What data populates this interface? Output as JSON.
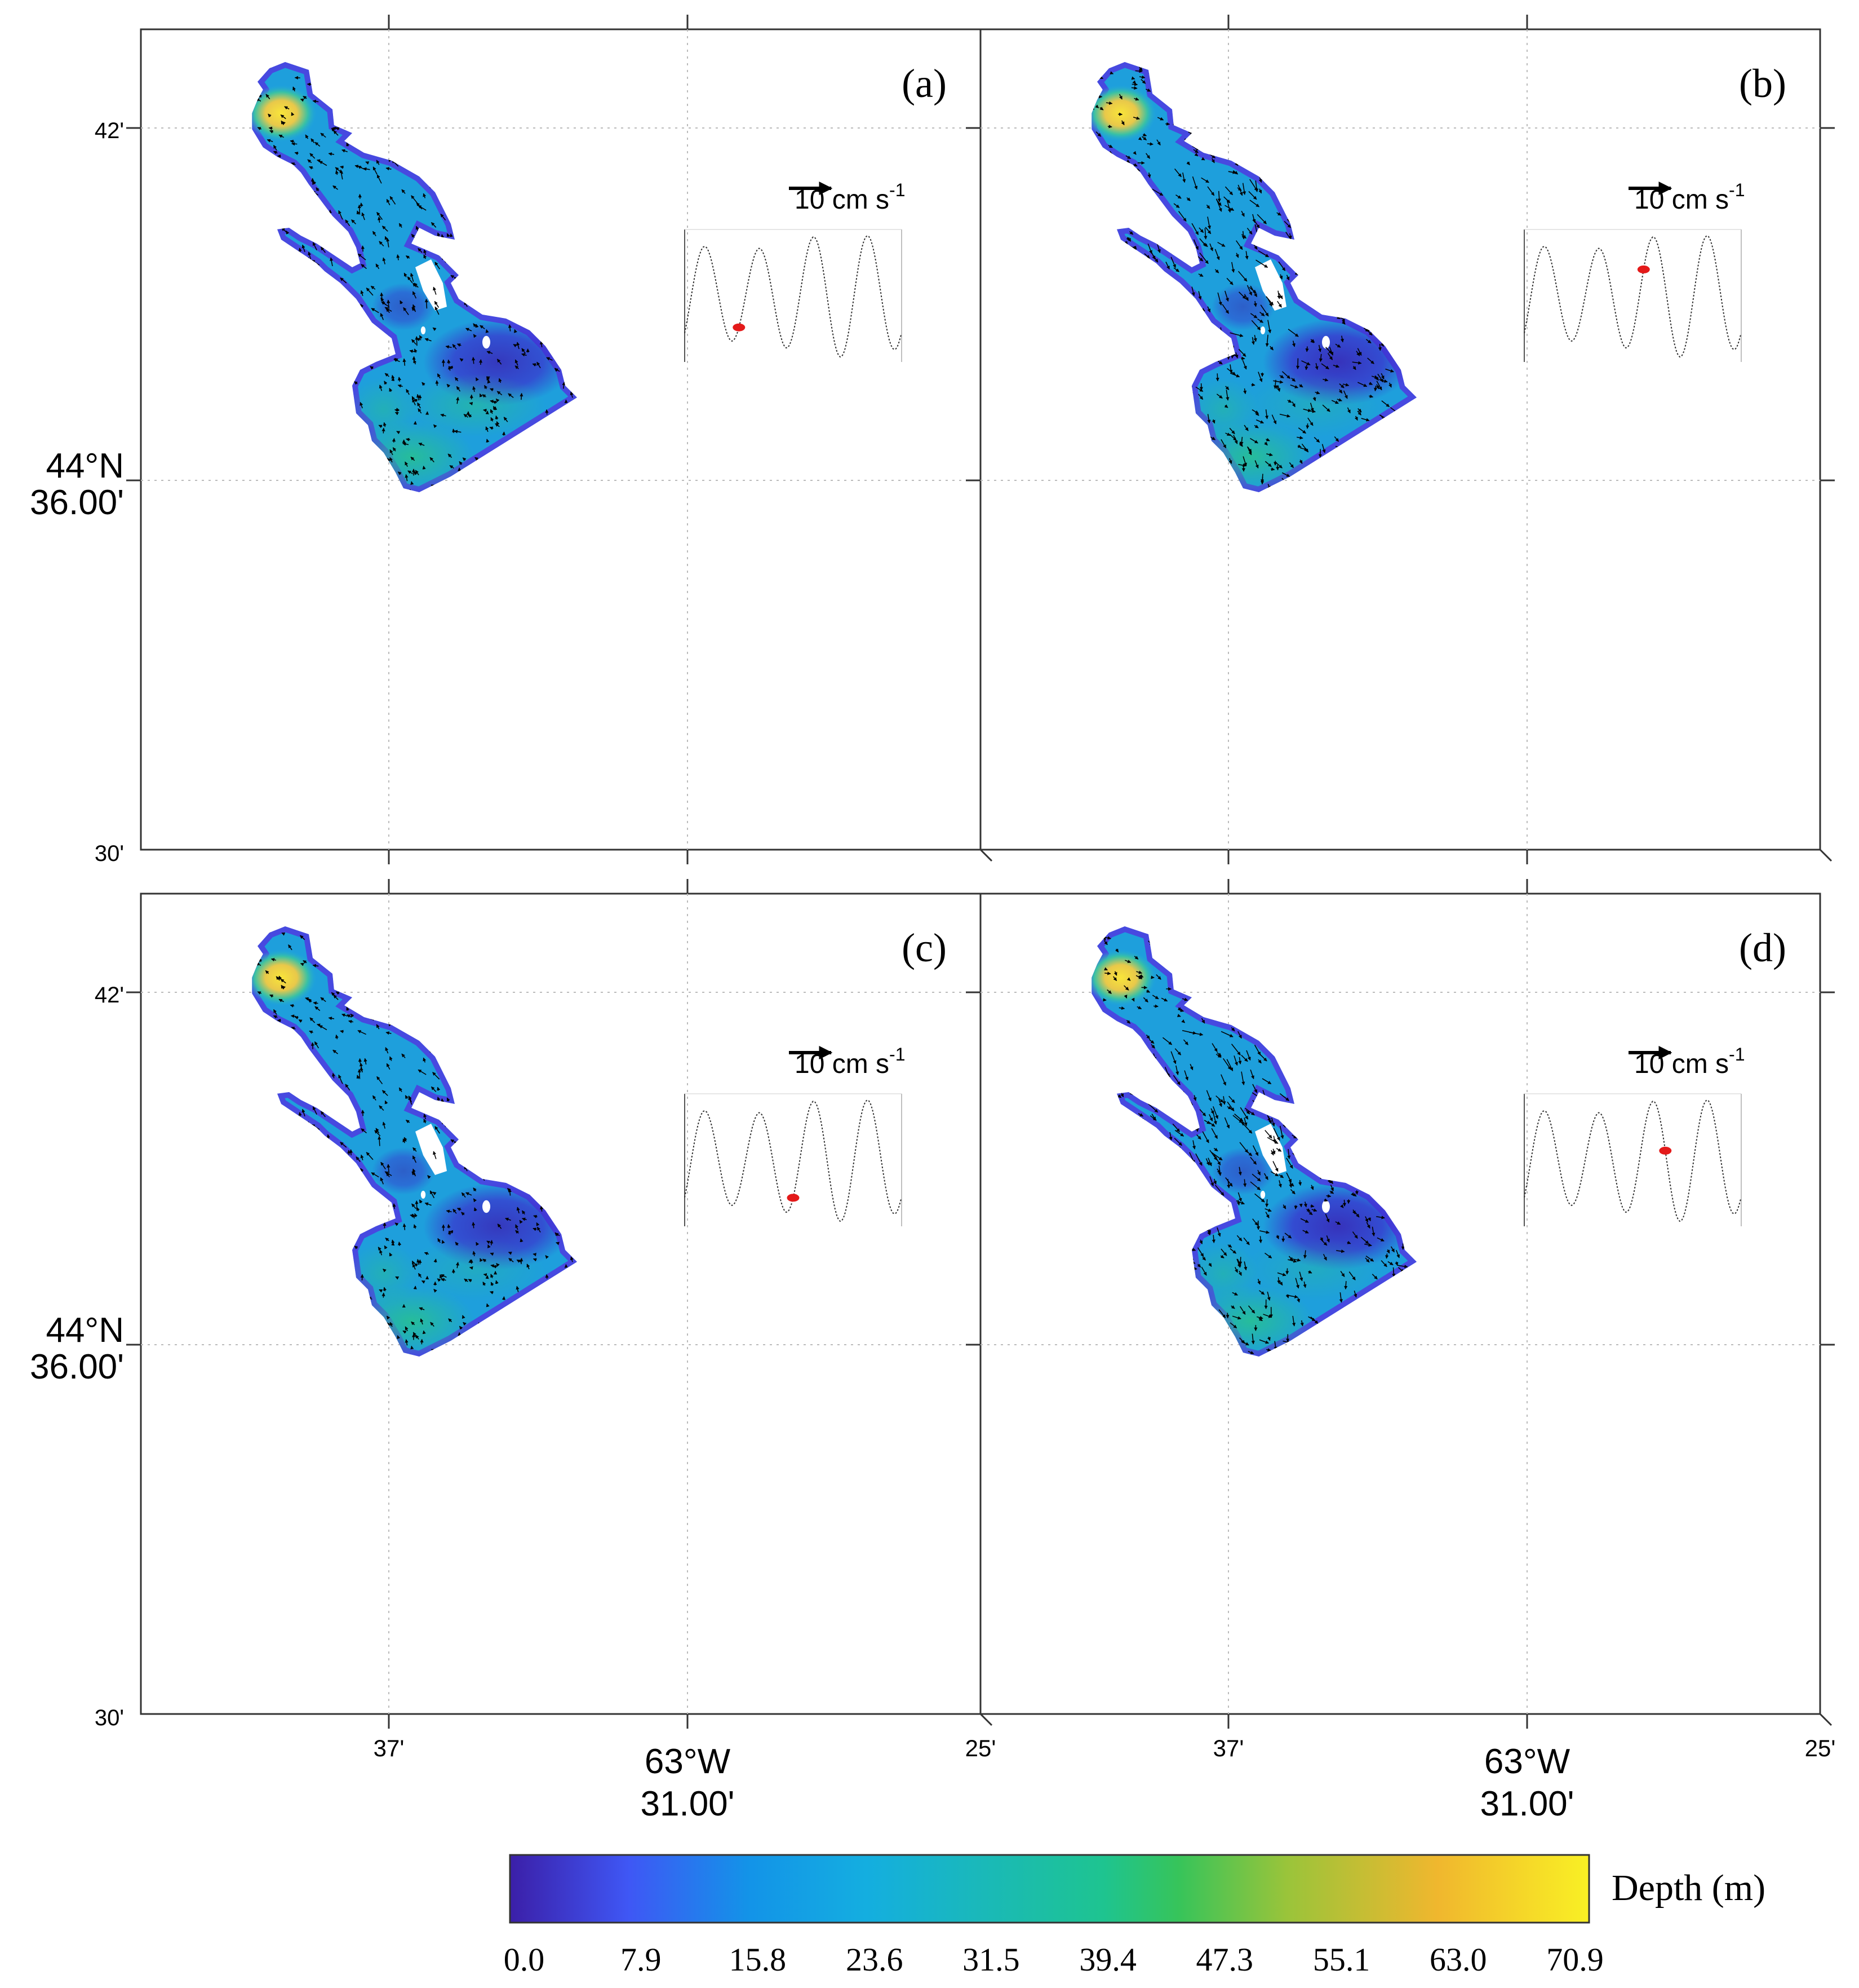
{
  "panels": [
    {
      "label": "(a)",
      "tide_marker": 1.0
    },
    {
      "label": "(b)",
      "tide_marker": 2.2
    },
    {
      "label": "(c)",
      "tide_marker": 2.0
    },
    {
      "label": "(d)",
      "tide_marker": 2.6
    }
  ],
  "axes": {
    "lat_ticks": [
      {
        "value": "42'"
      },
      {
        "value": "44°N",
        "value2": "36.00'"
      },
      {
        "value": "30'"
      }
    ],
    "lon_ticks": [
      {
        "value": "37'"
      },
      {
        "value": "63°W",
        "value2": "31.00'"
      },
      {
        "value": "25'"
      }
    ]
  },
  "scale_vector": {
    "label": "10 cm s",
    "exponent": "-1"
  },
  "colorbar": {
    "label": "Depth (m)",
    "ticks": [
      "0.0",
      "7.9",
      "15.8",
      "23.6",
      "31.5",
      "39.4",
      "47.3",
      "55.1",
      "63.0",
      "70.9"
    ],
    "colors": [
      "#3b1fa8",
      "#3f57f5",
      "#1393e8",
      "#14aee0",
      "#1ab9b8",
      "#1ec490",
      "#37c45a",
      "#9ac43a",
      "#f0b72e",
      "#f9e024"
    ]
  },
  "colors": {
    "deep": "#f6e03a",
    "shallow": "#4a3ddb",
    "mid": "#1fa8d8",
    "marker": "#e41a1a"
  }
}
